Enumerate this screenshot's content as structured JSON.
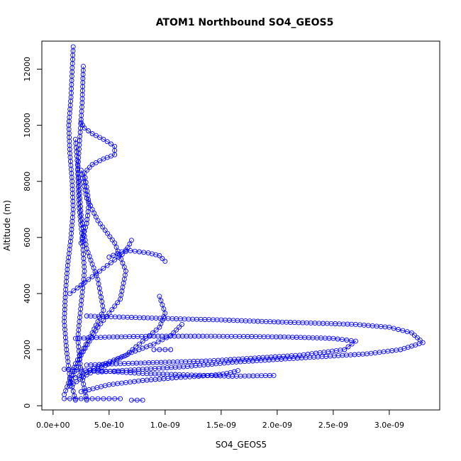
{
  "chart_data": {
    "type": "scatter",
    "title": "ATOM1 Northbound SO4_GEOS5",
    "xlabel": "SO4_GEOS5",
    "ylabel": "Altitude (m)",
    "xlim": [
      -1e-10,
      3.45e-09
    ],
    "ylim": [
      -150,
      13000
    ],
    "x_ticks": [
      {
        "value": 0.0,
        "label": "0.0e+00"
      },
      {
        "value": 5e-10,
        "label": "5.0e-10"
      },
      {
        "value": 1e-09,
        "label": "1.0e-09"
      },
      {
        "value": 1.5e-09,
        "label": "1.5e-09"
      },
      {
        "value": 2e-09,
        "label": "2.0e-09"
      },
      {
        "value": 2.5e-09,
        "label": "2.5e-09"
      },
      {
        "value": 3e-09,
        "label": "3.0e-09"
      }
    ],
    "y_ticks": [
      {
        "value": 0,
        "label": "0"
      },
      {
        "value": 2000,
        "label": "2000"
      },
      {
        "value": 4000,
        "label": "4000"
      },
      {
        "value": 6000,
        "label": "6000"
      },
      {
        "value": 8000,
        "label": "8000"
      },
      {
        "value": 10000,
        "label": "10000"
      },
      {
        "value": 12000,
        "label": "12000"
      }
    ],
    "grid": false,
    "marker": "open-circle",
    "connect_points": true,
    "color": "#0000ff",
    "series": [
      {
        "x": [
          2e-10,
          1.5e-10,
          1.2e-10,
          1e-10,
          1.1e-10,
          1.3e-10,
          1.6e-10,
          1.8e-10,
          1.7e-10,
          1.5e-10,
          1.4e-10,
          1.6e-10,
          1.8e-10
        ],
        "y": [
          200,
          1000,
          2000,
          3000,
          4000,
          5000,
          6000,
          7000,
          8000,
          9000,
          10000,
          11000,
          12800
        ]
      },
      {
        "x": [
          3e-10,
          2.5e-10,
          2.2e-10,
          2.5e-10,
          2.8e-10,
          2.6e-10,
          2.3e-10,
          2.2e-10,
          2.4e-10,
          2.6e-10,
          2.7e-10
        ],
        "y": [
          200,
          1200,
          2400,
          3600,
          4800,
          6000,
          7200,
          8400,
          9600,
          10800,
          12100
        ]
      },
      {
        "x": [
          1e-10,
          2e-10,
          3.5e-10,
          4.5e-10,
          4e-10,
          3e-10,
          2.5e-10,
          2.3e-10,
          2e-10
        ],
        "y": [
          400,
          1500,
          2600,
          3400,
          4500,
          5600,
          6800,
          8000,
          9500
        ]
      },
      {
        "x": [
          1.5e-10,
          2.5e-10,
          4e-10,
          6e-10,
          6.5e-10,
          5.5e-10,
          4e-10,
          3e-10,
          2.5e-10
        ],
        "y": [
          800,
          1800,
          2800,
          3800,
          4800,
          5800,
          6600,
          7400,
          8400
        ]
      },
      {
        "x": [
          2.5e-10,
          3e-10,
          3.2e-10,
          3e-10,
          2.8e-10,
          3.5e-10,
          4.5e-10,
          5.5e-10,
          5.5e-10,
          4.5e-10,
          3.5e-10,
          2.8e-10,
          2.5e-10
        ],
        "y": [
          5800,
          6500,
          7200,
          7800,
          8300,
          8600,
          8800,
          8950,
          9250,
          9500,
          9700,
          9900,
          10100
        ]
      },
      {
        "x": [
          5e-10,
          6.5e-10,
          8.5e-10,
          9.5e-10,
          1e-09
        ],
        "y": [
          5300,
          5550,
          5450,
          5350,
          5150
        ]
      },
      {
        "x": [
          1.5e-10,
          2.5e-10,
          3.5e-10,
          4.5e-10,
          5.5e-10,
          6.5e-10,
          7e-10
        ],
        "y": [
          4000,
          4300,
          4600,
          4900,
          5200,
          5500,
          5900
        ]
      },
      {
        "x": [
          2e-10,
          4e-10,
          6.5e-10,
          8e-10,
          9.5e-10,
          1e-09,
          9.5e-10
        ],
        "y": [
          1000,
          1400,
          1800,
          2300,
          2800,
          3300,
          3900
        ]
      },
      {
        "x": [
          1.5e-10,
          3e-10,
          5e-10,
          7e-10,
          9e-10,
          1.05e-09,
          1.15e-09
        ],
        "y": [
          700,
          1100,
          1500,
          1900,
          2200,
          2500,
          2900
        ]
      },
      {
        "x": [
          2.5e-10,
          5e-10,
          8e-10,
          1.1e-09,
          1.3e-09,
          1.45e-09,
          1.55e-09,
          1.65e-09
        ],
        "y": [
          500,
          750,
          900,
          1000,
          1050,
          1100,
          1150,
          1250
        ]
      },
      {
        "x": [
          1e-10,
          4e-10,
          8e-10,
          1.2e-09,
          1.6e-09,
          1.97e-09
        ],
        "y": [
          1300,
          1250,
          1150,
          1100,
          1050,
          1080
        ]
      },
      {
        "x": [
          9e-10,
          9.5e-10,
          1e-09,
          1.05e-09
        ],
        "y": [
          2000,
          2000,
          2000,
          2000
        ]
      },
      {
        "x": [
          2e-10,
          5e-10,
          9e-10,
          1.3e-09,
          1.7e-09,
          2.1e-09,
          2.5e-09,
          2.7e-09,
          2.6e-09,
          2.2e-09,
          1.8e-09,
          1.4e-09,
          1e-09,
          6e-10,
          3e-10
        ],
        "y": [
          2400,
          2450,
          2480,
          2480,
          2470,
          2450,
          2400,
          2300,
          2000,
          1800,
          1700,
          1600,
          1550,
          1500,
          1450
        ]
      },
      {
        "x": [
          3e-10,
          7e-10,
          1.1e-09,
          1.5e-09,
          1.9e-09,
          2.3e-09,
          2.7e-09,
          3e-09,
          3.2e-09,
          3.3e-09,
          3.1e-09,
          2.8e-09,
          2.4e-09,
          2e-09,
          1.6e-09,
          1.2e-09,
          8e-10,
          4e-10
        ],
        "y": [
          3200,
          3150,
          3100,
          3060,
          3000,
          2950,
          2900,
          2800,
          2600,
          2250,
          2000,
          1850,
          1750,
          1650,
          1550,
          1400,
          1300,
          1200
        ]
      },
      {
        "x": [
          1e-10,
          1.5e-10,
          2e-10,
          2.5e-10,
          3e-10,
          3.5e-10,
          4e-10,
          4.5e-10,
          5e-10,
          5.5e-10,
          6e-10
        ],
        "y": [
          250,
          250,
          250,
          250,
          250,
          250,
          250,
          250,
          250,
          250,
          250
        ]
      },
      {
        "x": [
          7e-10,
          7.5e-10,
          8e-10
        ],
        "y": [
          200,
          200,
          200
        ]
      }
    ]
  }
}
